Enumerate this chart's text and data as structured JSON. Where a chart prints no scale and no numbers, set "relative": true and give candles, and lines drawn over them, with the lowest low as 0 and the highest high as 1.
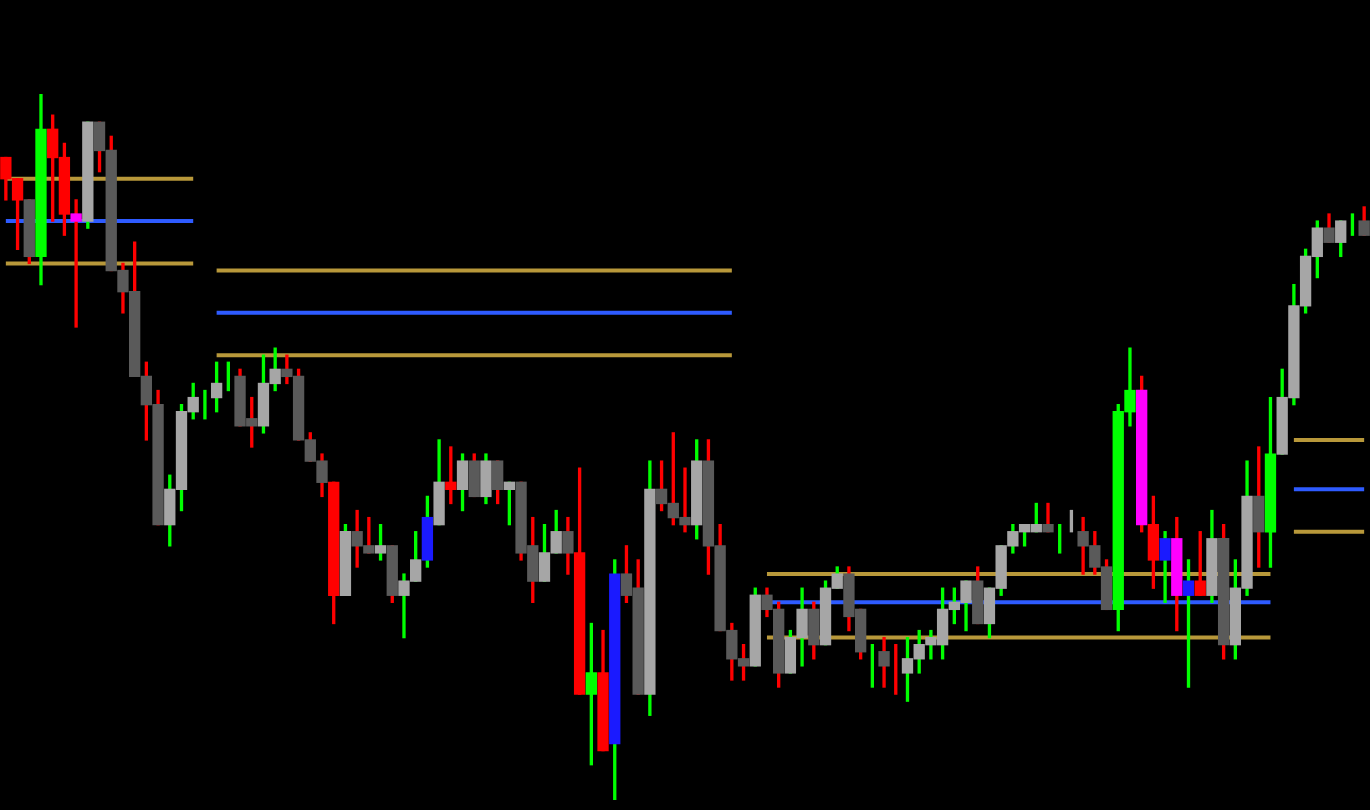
{
  "chart_data": {
    "type": "candlestick",
    "relative": true,
    "categories": [
      null,
      null,
      null,
      null,
      null,
      null,
      null,
      null,
      null,
      null,
      null,
      null,
      null,
      null,
      null,
      null,
      null,
      null,
      null,
      null,
      null,
      null,
      null,
      null,
      null,
      null,
      null,
      null,
      null,
      null,
      null,
      null,
      null,
      null,
      null,
      null,
      null,
      null,
      null,
      null,
      null,
      null,
      null,
      null,
      null,
      null,
      null,
      null,
      null,
      null,
      null,
      null,
      null,
      null,
      null,
      null,
      null,
      null,
      null,
      null,
      null,
      null,
      null,
      null,
      null,
      null,
      null,
      null,
      null,
      null,
      null,
      null,
      null,
      null,
      null,
      null,
      null,
      null,
      null,
      null,
      null,
      null,
      null,
      null,
      null,
      null,
      null,
      null,
      null,
      null,
      null,
      null,
      null,
      null,
      null,
      null,
      null,
      null,
      null,
      null,
      null,
      null,
      null,
      null,
      null,
      null,
      null,
      null,
      null,
      null,
      null,
      null,
      null,
      null,
      null,
      null,
      null
    ],
    "ohlc": [
      [
        0.91,
        0.91,
        0.85,
        0.88
      ],
      [
        0.88,
        0.88,
        0.78,
        0.85
      ],
      [
        0.85,
        0.85,
        0.76,
        0.77
      ],
      [
        0.77,
        1,
        0.73,
        0.95
      ],
      [
        0.95,
        0.97,
        0.82,
        0.91
      ],
      [
        0.91,
        0.93,
        0.8,
        0.83
      ],
      [
        0.83,
        0.85,
        0.67,
        0.82
      ],
      [
        0.82,
        0.96,
        0.81,
        0.96
      ],
      [
        0.96,
        0.96,
        0.89,
        0.92
      ],
      [
        0.92,
        0.94,
        0.75,
        0.75
      ],
      [
        0.75,
        0.76,
        0.69,
        0.72
      ],
      [
        0.72,
        0.79,
        0.6,
        0.6
      ],
      [
        0.6,
        0.62,
        0.51,
        0.56
      ],
      [
        0.56,
        0.58,
        0.39,
        0.39
      ],
      [
        0.39,
        0.46,
        0.36,
        0.44
      ],
      [
        0.44,
        0.56,
        0.41,
        0.55
      ],
      [
        0.55,
        0.59,
        0.54,
        0.57
      ],
      [
        0.57,
        0.58,
        0.54,
        0.57
      ],
      [
        0.57,
        0.62,
        0.55,
        0.59
      ],
      [
        0.59,
        0.62,
        0.58,
        0.59
      ],
      [
        0.6,
        0.61,
        0.53,
        0.53
      ],
      [
        0.54,
        0.57,
        0.5,
        0.53
      ],
      [
        0.53,
        0.63,
        0.52,
        0.59
      ],
      [
        0.59,
        0.64,
        0.58,
        0.61
      ],
      [
        0.61,
        0.63,
        0.59,
        0.6
      ],
      [
        0.6,
        0.61,
        0.51,
        0.51
      ],
      [
        0.51,
        0.52,
        0.48,
        0.48
      ],
      [
        0.48,
        0.49,
        0.43,
        0.45
      ],
      [
        0.45,
        0.45,
        0.25,
        0.29
      ],
      [
        0.29,
        0.39,
        0.29,
        0.38
      ],
      [
        0.38,
        0.41,
        0.33,
        0.36
      ],
      [
        0.36,
        0.4,
        0.35,
        0.35
      ],
      [
        0.35,
        0.39,
        0.34,
        0.36
      ],
      [
        0.36,
        0.36,
        0.28,
        0.29
      ],
      [
        0.29,
        0.32,
        0.23,
        0.31
      ],
      [
        0.31,
        0.38,
        0.31,
        0.34
      ],
      [
        0.34,
        0.43,
        0.33,
        0.4
      ],
      [
        0.39,
        0.51,
        0.39,
        0.45
      ],
      [
        0.45,
        0.5,
        0.42,
        0.44
      ],
      [
        0.44,
        0.49,
        0.41,
        0.48
      ],
      [
        0.48,
        0.49,
        0.43,
        0.43
      ],
      [
        0.43,
        0.49,
        0.42,
        0.48
      ],
      [
        0.48,
        0.48,
        0.42,
        0.44
      ],
      [
        0.44,
        0.45,
        0.39,
        0.45
      ],
      [
        0.45,
        0.45,
        0.34,
        0.35
      ],
      [
        0.36,
        0.4,
        0.28,
        0.31
      ],
      [
        0.31,
        0.39,
        0.31,
        0.35
      ],
      [
        0.35,
        0.41,
        0.35,
        0.38
      ],
      [
        0.38,
        0.4,
        0.32,
        0.35
      ],
      [
        0.35,
        0.47,
        0.15,
        0.15
      ],
      [
        0.15,
        0.25,
        0.05,
        0.18
      ],
      [
        0.18,
        0.24,
        0.07,
        0.07
      ],
      [
        0.08,
        0.34,
        0,
        0.32
      ],
      [
        0.32,
        0.36,
        0.28,
        0.29
      ],
      [
        0.3,
        0.34,
        0.15,
        0.15
      ],
      [
        0.15,
        0.48,
        0.12,
        0.44
      ],
      [
        0.44,
        0.48,
        0.41,
        0.42
      ],
      [
        0.42,
        0.52,
        0.39,
        0.4
      ],
      [
        0.4,
        0.47,
        0.38,
        0.39
      ],
      [
        0.39,
        0.51,
        0.37,
        0.48
      ],
      [
        0.48,
        0.51,
        0.32,
        0.36
      ],
      [
        0.36,
        0.39,
        0.24,
        0.24
      ],
      [
        0.24,
        0.25,
        0.17,
        0.2
      ],
      [
        0.2,
        0.22,
        0.17,
        0.19
      ],
      [
        0.19,
        0.3,
        0.19,
        0.29
      ],
      [
        0.29,
        0.3,
        0.26,
        0.27
      ],
      [
        0.27,
        0.28,
        0.16,
        0.18
      ],
      [
        0.18,
        0.24,
        0.18,
        0.23
      ],
      [
        0.23,
        0.3,
        0.19,
        0.27
      ],
      [
        0.27,
        0.28,
        0.2,
        0.22
      ],
      [
        0.22,
        0.31,
        0.22,
        0.3
      ],
      [
        0.3,
        0.33,
        0.3,
        0.32
      ],
      [
        0.32,
        0.33,
        0.24,
        0.26
      ],
      [
        0.27,
        0.27,
        0.2,
        0.21
      ],
      [
        0.21,
        0.22,
        0.16,
        0.21
      ],
      [
        0.21,
        0.23,
        0.16,
        0.19
      ],
      [
        0.19,
        0.22,
        0.15,
        0.19
      ],
      [
        0.18,
        0.23,
        0.14,
        0.2
      ],
      [
        0.2,
        0.24,
        0.18,
        0.22
      ],
      [
        0.22,
        0.24,
        0.2,
        0.23
      ],
      [
        0.22,
        0.3,
        0.2,
        0.27
      ],
      [
        0.27,
        0.3,
        0.25,
        0.28
      ],
      [
        0.28,
        0.31,
        0.24,
        0.31
      ],
      [
        0.31,
        0.33,
        0.25,
        0.25
      ],
      [
        0.25,
        0.3,
        0.23,
        0.3
      ],
      [
        0.3,
        0.36,
        0.29,
        0.36
      ],
      [
        0.36,
        0.39,
        0.35,
        0.38
      ],
      [
        0.38,
        0.39,
        0.36,
        0.39
      ],
      [
        0.38,
        0.42,
        0.38,
        0.39
      ],
      [
        0.39,
        0.42,
        0.38,
        0.38
      ],
      [
        0.38,
        0.39,
        0.35,
        0.38
      ],
      [
        0.38,
        0.41,
        0.38,
        0.38
      ],
      [
        0.38,
        0.4,
        0.32,
        0.36
      ],
      [
        0.36,
        0.38,
        0.32,
        0.33
      ],
      [
        0.33,
        0.34,
        0.27,
        0.27
      ],
      [
        0.27,
        0.56,
        0.24,
        0.55
      ],
      [
        0.55,
        0.64,
        0.53,
        0.58
      ],
      [
        0.58,
        0.6,
        0.38,
        0.39
      ],
      [
        0.39,
        0.43,
        0.3,
        0.34
      ],
      [
        0.34,
        0.38,
        0.28,
        0.37
      ],
      [
        0.37,
        0.4,
        0.24,
        0.29
      ],
      [
        0.29,
        0.34,
        0.16,
        0.31
      ],
      [
        0.31,
        0.38,
        0.29,
        0.29
      ],
      [
        0.29,
        0.41,
        0.28,
        0.37
      ],
      [
        0.37,
        0.39,
        0.2,
        0.22
      ],
      [
        0.22,
        0.34,
        0.2,
        0.3
      ],
      [
        0.3,
        0.48,
        0.29,
        0.43
      ],
      [
        0.43,
        0.5,
        0.33,
        0.38
      ],
      [
        0.38,
        0.57,
        0.33,
        0.49
      ],
      [
        0.49,
        0.61,
        0.49,
        0.57
      ],
      [
        0.57,
        0.73,
        0.56,
        0.7
      ],
      [
        0.7,
        0.78,
        0.69,
        0.77
      ],
      [
        0.77,
        0.82,
        0.74,
        0.81
      ],
      [
        0.81,
        0.83,
        0.79,
        0.79
      ],
      [
        0.79,
        0.82,
        0.77,
        0.82
      ],
      [
        0.82,
        0.83,
        0.8,
        0.82
      ],
      [
        0.82,
        0.84,
        0.8,
        0.8
      ]
    ],
    "colors": [
      "#ff0000",
      "#ff0000",
      "#5a5a5a",
      "#00ff00",
      "#ff0000",
      "#ff0000",
      "#ff00ff",
      "#a6a6a6",
      "#5a5a5a",
      "#5a5a5a",
      "#5a5a5a",
      "#5a5a5a",
      "#5a5a5a",
      "#5a5a5a",
      "#a6a6a6",
      "#a6a6a6",
      "#a6a6a6",
      "#00ff00",
      "#a6a6a6",
      "#00ff00",
      "#5a5a5a",
      "#5a5a5a",
      "#a6a6a6",
      "#a6a6a6",
      "#5a5a5a",
      "#5a5a5a",
      "#5a5a5a",
      "#5a5a5a",
      "#ff0000",
      "#a6a6a6",
      "#5a5a5a",
      "#5a5a5a",
      "#a6a6a6",
      "#5a5a5a",
      "#a6a6a6",
      "#a6a6a6",
      "#1a1aff",
      "#a6a6a6",
      "#ff0000",
      "#a6a6a6",
      "#5a5a5a",
      "#a6a6a6",
      "#5a5a5a",
      "#a6a6a6",
      "#5a5a5a",
      "#5a5a5a",
      "#a6a6a6",
      "#a6a6a6",
      "#5a5a5a",
      "#ff0000",
      "#00ff00",
      "#ff0000",
      "#1a1aff",
      "#5a5a5a",
      "#5a5a5a",
      "#a6a6a6",
      "#5a5a5a",
      "#5a5a5a",
      "#5a5a5a",
      "#a6a6a6",
      "#5a5a5a",
      "#5a5a5a",
      "#5a5a5a",
      "#5a5a5a",
      "#a6a6a6",
      "#5a5a5a",
      "#5a5a5a",
      "#a6a6a6",
      "#a6a6a6",
      "#5a5a5a",
      "#a6a6a6",
      "#a6a6a6",
      "#5a5a5a",
      "#5a5a5a",
      "#00ff00",
      "#5a5a5a",
      "#ff0000",
      "#a6a6a6",
      "#a6a6a6",
      "#a6a6a6",
      "#a6a6a6",
      "#a6a6a6",
      "#a6a6a6",
      "#5a5a5a",
      "#a6a6a6",
      "#a6a6a6",
      "#a6a6a6",
      "#a6a6a6",
      "#a6a6a6",
      "#5a5a5a",
      "#00ff00",
      "#a6a6a6",
      "#5a5a5a",
      "#5a5a5a",
      "#5a5a5a",
      "#00ff00",
      "#00ff00",
      "#ff00ff",
      "#ff0000",
      "#1a1aff",
      "#ff00ff",
      "#1a1aff",
      "#ff0000",
      "#a6a6a6",
      "#5a5a5a",
      "#a6a6a6",
      "#a6a6a6",
      "#5a5a5a",
      "#00ff00",
      "#a6a6a6",
      "#a6a6a6",
      "#a6a6a6",
      "#a6a6a6",
      "#5a5a5a",
      "#a6a6a6",
      "#00ff00",
      "#5a5a5a"
    ],
    "series": [
      {
        "type": "line",
        "color": "#b8983a",
        "values": [
          0.88,
          0.88,
          0.88,
          0.88,
          0.88,
          0.88,
          0.88,
          0.88,
          0.88,
          0.88,
          0.88,
          0.88,
          0.88,
          0.88,
          0.88,
          0.88,
          0.88,
          null,
          0.75,
          0.75,
          0.75,
          0.75,
          0.75,
          0.75,
          0.75,
          0.75,
          0.75,
          0.75,
          0.75,
          0.75,
          0.75,
          0.75,
          0.75,
          0.75,
          0.75,
          0.75,
          0.75,
          0.75,
          0.75,
          0.75,
          0.75,
          0.75,
          0.75,
          0.75,
          0.75,
          0.75,
          0.75,
          0.75,
          0.75,
          0.75,
          0.75,
          0.75,
          0.75,
          0.75,
          0.75,
          0.75,
          0.75,
          0.75,
          0.75,
          0.75,
          0.75,
          0.75,
          0.75,
          null,
          null,
          0.32,
          0.32,
          0.32,
          0.32,
          0.32,
          0.32,
          0.32,
          0.32,
          0.32,
          0.32,
          0.32,
          0.32,
          0.32,
          0.32,
          0.32,
          0.32,
          0.32,
          0.32,
          0.32,
          0.32,
          0.32,
          0.32,
          0.32,
          0.32,
          0.32,
          0.32,
          0.32,
          0.32,
          0.32,
          0.32,
          0.32,
          0.32,
          0.32,
          0.32,
          0.32,
          0.32,
          0.32,
          0.32,
          0.32,
          0.32,
          0.32,
          0.32,
          0.32,
          0.32,
          null,
          0.51,
          0.51,
          0.51,
          0.51,
          0.51,
          0.51,
          0.51
        ]
      },
      {
        "type": "line",
        "color": "#2e5bff",
        "values": [
          0.82,
          0.82,
          0.82,
          0.82,
          0.82,
          0.82,
          0.82,
          0.82,
          0.82,
          0.82,
          0.82,
          0.82,
          0.82,
          0.82,
          0.82,
          0.82,
          0.82,
          null,
          0.69,
          0.69,
          0.69,
          0.69,
          0.69,
          0.69,
          0.69,
          0.69,
          0.69,
          0.69,
          0.69,
          0.69,
          0.69,
          0.69,
          0.69,
          0.69,
          0.69,
          0.69,
          0.69,
          0.69,
          0.69,
          0.69,
          0.69,
          0.69,
          0.69,
          0.69,
          0.69,
          0.69,
          0.69,
          0.69,
          0.69,
          0.69,
          0.69,
          0.69,
          0.69,
          0.69,
          0.69,
          0.69,
          0.69,
          0.69,
          0.69,
          0.69,
          0.69,
          0.69,
          0.69,
          null,
          null,
          0.28,
          0.28,
          0.28,
          0.28,
          0.28,
          0.28,
          0.28,
          0.28,
          0.28,
          0.28,
          0.28,
          0.28,
          0.28,
          0.28,
          0.28,
          0.28,
          0.28,
          0.28,
          0.28,
          0.28,
          0.28,
          0.28,
          0.28,
          0.28,
          0.28,
          0.28,
          0.28,
          0.28,
          0.28,
          0.28,
          0.28,
          0.28,
          0.28,
          0.28,
          0.28,
          0.28,
          0.28,
          0.28,
          0.28,
          0.28,
          0.28,
          0.28,
          0.28,
          0.28,
          null,
          0.44,
          0.44,
          0.44,
          0.44,
          0.44,
          0.44,
          0.44
        ]
      },
      {
        "type": "line",
        "color": "#b8983a",
        "values": [
          0.76,
          0.76,
          0.76,
          0.76,
          0.76,
          0.76,
          0.76,
          0.76,
          0.76,
          0.76,
          0.76,
          0.76,
          0.76,
          0.76,
          0.76,
          0.76,
          0.76,
          null,
          0.63,
          0.63,
          0.63,
          0.63,
          0.63,
          0.63,
          0.63,
          0.63,
          0.63,
          0.63,
          0.63,
          0.63,
          0.63,
          0.63,
          0.63,
          0.63,
          0.63,
          0.63,
          0.63,
          0.63,
          0.63,
          0.63,
          0.63,
          0.63,
          0.63,
          0.63,
          0.63,
          0.63,
          0.63,
          0.63,
          0.63,
          0.63,
          0.63,
          0.63,
          0.63,
          0.63,
          0.63,
          0.63,
          0.63,
          0.63,
          0.63,
          0.63,
          0.63,
          0.63,
          0.63,
          null,
          null,
          0.23,
          0.23,
          0.23,
          0.23,
          0.23,
          0.23,
          0.23,
          0.23,
          0.23,
          0.23,
          0.23,
          0.23,
          0.23,
          0.23,
          0.23,
          0.23,
          0.23,
          0.23,
          0.23,
          0.23,
          0.23,
          0.23,
          0.23,
          0.23,
          0.23,
          0.23,
          0.23,
          0.23,
          0.23,
          0.23,
          0.23,
          0.23,
          0.23,
          0.23,
          0.23,
          0.23,
          0.23,
          0.23,
          0.23,
          0.23,
          0.23,
          0.23,
          0.23,
          0.23,
          null,
          0.38,
          0.38,
          0.38,
          0.38,
          0.38,
          0.38,
          0.38
        ]
      }
    ]
  }
}
